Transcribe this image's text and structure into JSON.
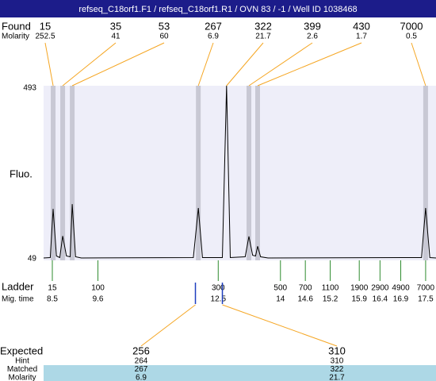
{
  "title": "refseq_C18orf1.F1 / refseq_C18orf1.R1 / OVN 83 / -1 / Well ID 1038468",
  "found": {
    "label": "Found",
    "molarity_label": "Molarity",
    "sizes": [
      15,
      35,
      53,
      267,
      322,
      399,
      430,
      7000
    ],
    "molarity": [
      252.5,
      41,
      60,
      6.9,
      21.7,
      2.6,
      1.7,
      0.5
    ],
    "migration": [
      8.52,
      8.75,
      8.98,
      12.02,
      12.7,
      13.24,
      13.45,
      17.5
    ]
  },
  "chart_data": {
    "type": "line",
    "y_label": "Fluo.",
    "ylim": [
      49,
      493
    ],
    "yticks": [
      49,
      493
    ],
    "xlim": [
      8.29,
      17.75
    ],
    "color": "#000000",
    "x": [
      8.29,
      8.45,
      8.52,
      8.6,
      8.68,
      8.75,
      8.84,
      8.93,
      8.98,
      9.06,
      9.2,
      11.9,
      12.02,
      12.12,
      12.6,
      12.7,
      12.79,
      13.15,
      13.24,
      13.33,
      13.4,
      13.45,
      13.52,
      13.7,
      17.4,
      17.5,
      17.6,
      17.75
    ],
    "y": [
      55,
      56,
      180,
      60,
      56,
      111,
      60,
      58,
      192,
      58,
      55,
      56,
      182,
      56,
      56,
      493,
      56,
      58,
      110,
      62,
      60,
      85,
      58,
      55,
      56,
      182,
      56,
      55
    ]
  },
  "ladder": {
    "label": "Ladder",
    "time_label": "Mig. time",
    "sizes": [
      15,
      100,
      300,
      500,
      700,
      1100,
      1900,
      2900,
      4900,
      7000
    ],
    "migration": [
      8.5,
      9.6,
      12.5,
      14,
      14.6,
      15.2,
      15.9,
      16.4,
      16.9,
      17.5
    ]
  },
  "expected": {
    "label": "Expected",
    "sizes": [
      256,
      310
    ],
    "migration": [
      11.95,
      12.6
    ],
    "rows": [
      {
        "label": "Hint",
        "values": [
          264,
          310
        ]
      },
      {
        "label": "Matched",
        "values": [
          267,
          322
        ]
      },
      {
        "label": "Molarity",
        "values": [
          6.9,
          21.7
        ]
      }
    ]
  }
}
